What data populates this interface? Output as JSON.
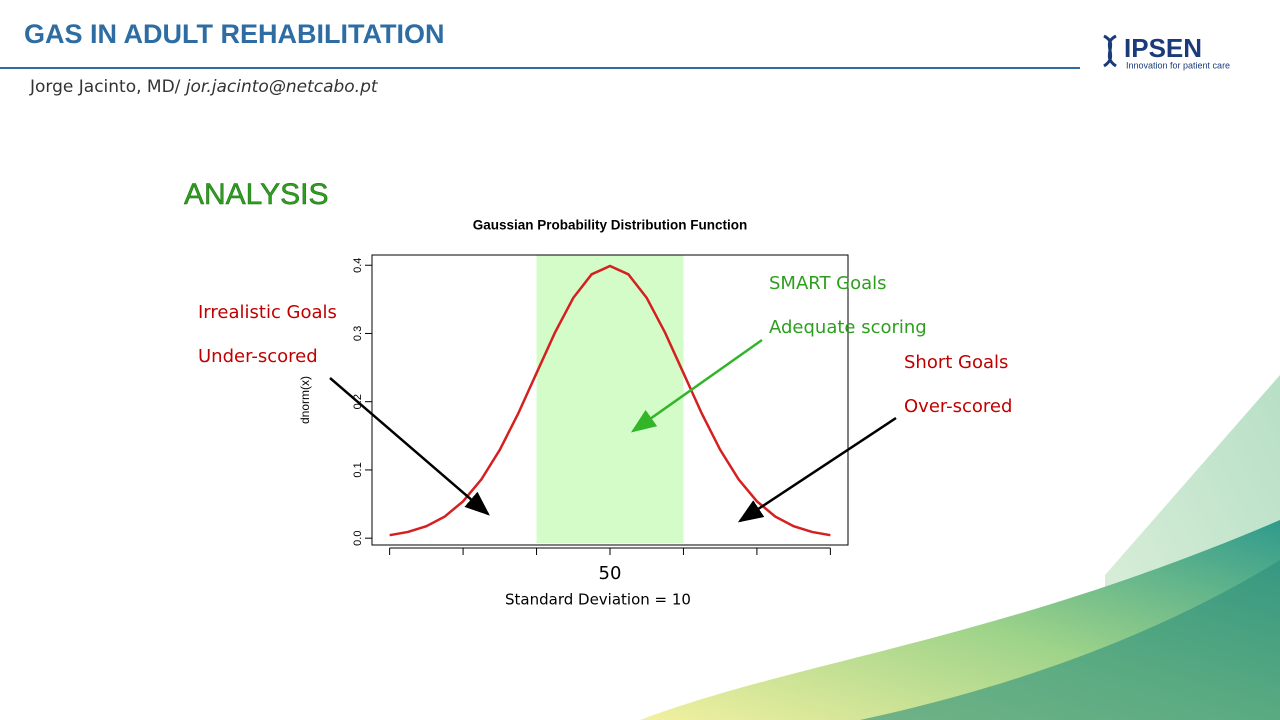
{
  "header": {
    "title": "GAS IN ADULT REHABILITATION",
    "author": "Jorge Jacinto, MD/",
    "email": "jor.jacinto@netcabo.pt"
  },
  "logo": {
    "name": "IPSEN",
    "tagline": "Innovation for patient care"
  },
  "section": "ANALYSIS",
  "chart_data": {
    "type": "line",
    "title": "Gaussian Probability Distribution Function",
    "ylabel": "dnorm(x)",
    "xnote": "Standard Deviation = 10",
    "x": [
      20,
      22.5,
      25,
      27.5,
      30,
      32.5,
      35,
      37.5,
      40,
      42.5,
      45,
      47.5,
      50,
      52.5,
      55,
      57.5,
      60,
      62.5,
      65,
      67.5,
      70,
      72.5,
      75,
      77.5,
      80
    ],
    "series": [
      {
        "name": "dnorm(x)",
        "color": "#d42020",
        "values": [
          0.0044,
          0.0091,
          0.0175,
          0.0317,
          0.054,
          0.0863,
          0.1295,
          0.1826,
          0.242,
          0.3011,
          0.3521,
          0.3867,
          0.3989,
          0.3867,
          0.3521,
          0.3011,
          0.242,
          0.1826,
          0.1295,
          0.0863,
          0.054,
          0.0317,
          0.0175,
          0.0091,
          0.0044
        ]
      }
    ],
    "band": [
      40,
      60
    ],
    "band_color": "#d4fcc8",
    "xlim": [
      17.6,
      82.4
    ],
    "xticks": [
      20,
      30,
      40,
      50,
      60,
      70,
      80
    ],
    "xlabels": [
      50
    ],
    "ylim": [
      -0.01,
      0.415
    ],
    "yticks": [
      {
        "value": 0,
        "label": "0.0"
      },
      0.1,
      0.2,
      0.3,
      0.4
    ]
  },
  "annotations": [
    {
      "text": "Irrealistic Goals",
      "color": "#c00000"
    },
    {
      "text": "Under-scored",
      "color": "#c00000"
    },
    {
      "text": "SMART  Goals",
      "color": "#2e9e1f"
    },
    {
      "text": "Adequate scoring",
      "color": "#2e9e1f"
    },
    {
      "text": "Short Goals",
      "color": "#c00000"
    },
    {
      "text": "Over-scored",
      "color": "#c00000"
    }
  ]
}
